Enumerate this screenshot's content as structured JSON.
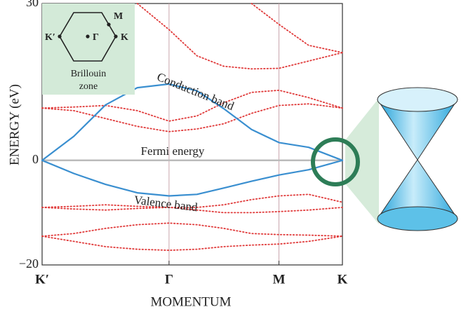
{
  "chart_data": {
    "type": "line",
    "ylabel": "ENERGY (eV)",
    "xlabel": "MOMENTUM",
    "x": [
      0,
      0.25,
      0.5,
      0.75,
      1.0,
      1.22,
      1.43,
      1.65,
      1.866,
      2.1,
      2.366
    ],
    "xlim": [
      0,
      2.366
    ],
    "xticks": [
      {
        "value": 0,
        "label": "K′"
      },
      {
        "value": 1.0,
        "label": "Γ"
      },
      {
        "value": 1.866,
        "label": "M"
      },
      {
        "value": 2.366,
        "label": "K"
      }
    ],
    "ylim": [
      -20,
      30
    ],
    "yticks": [
      {
        "value": -20,
        "label": "−20"
      },
      0,
      30
    ],
    "xgrid": true,
    "fermi_level": 0,
    "series": [
      {
        "color": "#e03a3a",
        "dashed": true,
        "values": [
          null,
          null,
          null,
          30,
          25,
          20,
          18,
          17.5,
          17.6,
          19,
          20.6
        ]
      },
      {
        "color": "#e03a3a",
        "dashed": true,
        "values": [
          null,
          null,
          null,
          null,
          null,
          null,
          null,
          30,
          26,
          22,
          20.6
        ]
      },
      {
        "color": "#e03a3a",
        "dashed": true,
        "values": [
          10,
          10.2,
          10.5,
          9.5,
          7.5,
          8.5,
          11,
          13,
          13.4,
          12,
          10
        ]
      },
      {
        "color": "#e03a3a",
        "dashed": true,
        "values": [
          10,
          9.5,
          8,
          6.5,
          5.5,
          6,
          7,
          9,
          10.5,
          10.8,
          10
        ]
      },
      {
        "color": "#e03a3a",
        "dashed": true,
        "values": [
          -9,
          -9.3,
          -9.5,
          -9.2,
          -9,
          -9,
          -8.5,
          -7.5,
          -6.8,
          -6.5,
          -8
        ]
      },
      {
        "color": "#e03a3a",
        "dashed": true,
        "values": [
          -9,
          -8.8,
          -8.5,
          -8.8,
          -9,
          -9.5,
          -10,
          -10,
          -9.8,
          -9.5,
          -9
        ]
      },
      {
        "color": "#e03a3a",
        "dashed": true,
        "values": [
          -14.5,
          -14,
          -13,
          -12.3,
          -12,
          -12.3,
          -13,
          -14,
          -14.2,
          -14.3,
          -14.5
        ]
      },
      {
        "color": "#e03a3a",
        "dashed": true,
        "values": [
          -14.5,
          -15.5,
          -16.5,
          -17,
          -17.2,
          -17,
          -16.5,
          -16.2,
          -16,
          -15.5,
          -14.5
        ]
      },
      {
        "color": "#3a8fd0",
        "dashed": false,
        "values": [
          0,
          4.6,
          10.6,
          13.9,
          14.6,
          13.3,
          9.9,
          5.9,
          3.4,
          2.5,
          0
        ]
      },
      {
        "color": "#3a8fd0",
        "dashed": false,
        "values": [
          0,
          -2.5,
          -4.6,
          -6.2,
          -6.8,
          -6.5,
          -5.3,
          -4.0,
          -2.8,
          -1.8,
          0
        ]
      }
    ],
    "annotations": {
      "conduction": "Conduction band",
      "fermi": "Fermi energy",
      "valence": "Valence band"
    },
    "inset": {
      "points": [
        "M",
        "K′",
        "Γ",
        "K"
      ],
      "title_lines": [
        "Brillouin",
        "zone"
      ]
    }
  }
}
